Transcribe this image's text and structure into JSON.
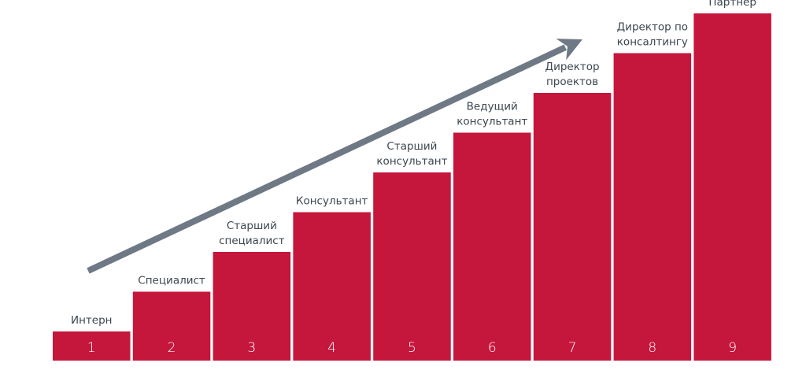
{
  "diagram": {
    "type": "career-staircase",
    "colors": {
      "step": "#c5163c",
      "arrow": "#6f7985",
      "label": "#3b4650",
      "number": "#ffffff"
    },
    "steps": [
      {
        "number": "1",
        "label_lines": [
          "Интерн"
        ],
        "level": 1
      },
      {
        "number": "2",
        "label_lines": [
          "Специалист"
        ],
        "level": 2
      },
      {
        "number": "3",
        "label_lines": [
          "Старший",
          "специалист"
        ],
        "level": 3
      },
      {
        "number": "4",
        "label_lines": [
          "Консультант"
        ],
        "level": 4
      },
      {
        "number": "5",
        "label_lines": [
          "Старший",
          "консультант"
        ],
        "level": 5
      },
      {
        "number": "6",
        "label_lines": [
          "Ведущий",
          "консультант"
        ],
        "level": 6
      },
      {
        "number": "7",
        "label_lines": [
          "Директор",
          "проектов"
        ],
        "level": 7
      },
      {
        "number": "8",
        "label_lines": [
          "Директор по",
          "консалтингу"
        ],
        "level": 8
      },
      {
        "number": "9",
        "label_lines": [
          "Партнер"
        ],
        "level": 9
      }
    ],
    "arrow_icon": "growth-arrow-icon"
  }
}
